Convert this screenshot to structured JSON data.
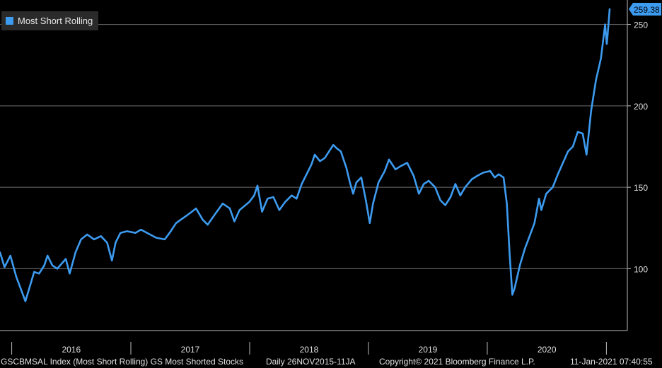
{
  "chart_data": {
    "type": "line",
    "legend": "Most Short Rolling",
    "legend_placement": "top-left",
    "grid": true,
    "ylim": [
      62,
      265
    ],
    "y_ticks": [
      100,
      150,
      200,
      250
    ],
    "y_tick_labels": [
      "100",
      "150",
      "200",
      "250"
    ],
    "last_value_label": "259.38",
    "x_labels": [
      "2016",
      "2017",
      "2018",
      "2019",
      "2020"
    ],
    "xlim": [
      "2015-11-26",
      "2021-01-11"
    ],
    "series": [
      {
        "name": "Most Short Rolling",
        "color": "#3d9bf0",
        "points": [
          [
            "2015-11-26",
            110
          ],
          [
            "2015-12-10",
            101
          ],
          [
            "2015-12-28",
            108
          ],
          [
            "2016-01-15",
            95
          ],
          [
            "2016-02-01",
            86
          ],
          [
            "2016-02-12",
            80
          ],
          [
            "2016-02-24",
            88
          ],
          [
            "2016-03-10",
            98
          ],
          [
            "2016-03-25",
            97
          ],
          [
            "2016-04-10",
            102
          ],
          [
            "2016-04-20",
            108
          ],
          [
            "2016-05-05",
            102
          ],
          [
            "2016-05-20",
            100
          ],
          [
            "2016-06-15",
            106
          ],
          [
            "2016-06-27",
            97
          ],
          [
            "2016-07-15",
            110
          ],
          [
            "2016-08-01",
            118
          ],
          [
            "2016-08-20",
            121
          ],
          [
            "2016-09-10",
            118
          ],
          [
            "2016-10-01",
            120
          ],
          [
            "2016-10-20",
            116
          ],
          [
            "2016-11-04",
            105
          ],
          [
            "2016-11-15",
            116
          ],
          [
            "2016-11-30",
            122
          ],
          [
            "2016-12-20",
            123
          ],
          [
            "2017-01-15",
            122
          ],
          [
            "2017-02-01",
            124
          ],
          [
            "2017-03-01",
            121
          ],
          [
            "2017-03-20",
            119
          ],
          [
            "2017-04-15",
            118
          ],
          [
            "2017-04-30",
            122
          ],
          [
            "2017-05-20",
            128
          ],
          [
            "2017-06-10",
            131
          ],
          [
            "2017-07-01",
            134
          ],
          [
            "2017-07-20",
            137
          ],
          [
            "2017-08-10",
            130
          ],
          [
            "2017-08-25",
            127
          ],
          [
            "2017-09-15",
            133
          ],
          [
            "2017-10-10",
            140
          ],
          [
            "2017-11-01",
            137
          ],
          [
            "2017-11-15",
            129
          ],
          [
            "2017-12-01",
            136
          ],
          [
            "2017-12-31",
            141
          ],
          [
            "2018-01-15",
            145
          ],
          [
            "2018-01-25",
            151
          ],
          [
            "2018-02-08",
            135
          ],
          [
            "2018-02-25",
            143
          ],
          [
            "2018-03-15",
            144
          ],
          [
            "2018-04-02",
            136
          ],
          [
            "2018-04-20",
            141
          ],
          [
            "2018-05-10",
            145
          ],
          [
            "2018-05-25",
            143
          ],
          [
            "2018-06-10",
            152
          ],
          [
            "2018-06-25",
            158
          ],
          [
            "2018-07-10",
            164
          ],
          [
            "2018-07-20",
            170
          ],
          [
            "2018-08-05",
            166
          ],
          [
            "2018-08-20",
            168
          ],
          [
            "2018-09-05",
            173
          ],
          [
            "2018-09-15",
            176
          ],
          [
            "2018-09-25",
            174
          ],
          [
            "2018-10-08",
            172
          ],
          [
            "2018-10-25",
            162
          ],
          [
            "2018-11-05",
            153
          ],
          [
            "2018-11-15",
            146
          ],
          [
            "2018-11-25",
            153
          ],
          [
            "2018-12-10",
            156
          ],
          [
            "2018-12-24",
            142
          ],
          [
            "2019-01-05",
            128
          ],
          [
            "2019-01-15",
            140
          ],
          [
            "2019-02-01",
            153
          ],
          [
            "2019-02-20",
            160
          ],
          [
            "2019-03-05",
            167
          ],
          [
            "2019-03-25",
            161
          ],
          [
            "2019-04-10",
            163
          ],
          [
            "2019-04-30",
            165
          ],
          [
            "2019-05-20",
            157
          ],
          [
            "2019-06-05",
            146
          ],
          [
            "2019-06-20",
            152
          ],
          [
            "2019-07-05",
            154
          ],
          [
            "2019-07-25",
            150
          ],
          [
            "2019-08-10",
            142
          ],
          [
            "2019-08-25",
            139
          ],
          [
            "2019-09-10",
            144
          ],
          [
            "2019-09-25",
            152
          ],
          [
            "2019-10-10",
            145
          ],
          [
            "2019-10-25",
            150
          ],
          [
            "2019-11-15",
            155
          ],
          [
            "2019-12-01",
            157
          ],
          [
            "2019-12-20",
            159
          ],
          [
            "2020-01-10",
            160
          ],
          [
            "2020-01-24",
            156
          ],
          [
            "2020-02-05",
            158
          ],
          [
            "2020-02-20",
            156
          ],
          [
            "2020-03-01",
            140
          ],
          [
            "2020-03-10",
            108
          ],
          [
            "2020-03-18",
            84
          ],
          [
            "2020-03-25",
            88
          ],
          [
            "2020-04-10",
            102
          ],
          [
            "2020-04-25",
            112
          ],
          [
            "2020-05-10",
            120
          ],
          [
            "2020-05-25",
            128
          ],
          [
            "2020-06-08",
            143
          ],
          [
            "2020-06-15",
            136
          ],
          [
            "2020-06-30",
            146
          ],
          [
            "2020-07-20",
            150
          ],
          [
            "2020-08-05",
            158
          ],
          [
            "2020-08-25",
            167
          ],
          [
            "2020-09-05",
            172
          ],
          [
            "2020-09-20",
            175
          ],
          [
            "2020-10-05",
            184
          ],
          [
            "2020-10-20",
            183
          ],
          [
            "2020-11-01",
            170
          ],
          [
            "2020-11-15",
            197
          ],
          [
            "2020-11-30",
            216
          ],
          [
            "2020-12-15",
            229
          ],
          [
            "2020-12-28",
            250
          ],
          [
            "2021-01-02",
            238
          ],
          [
            "2021-01-05",
            244
          ],
          [
            "2021-01-11",
            259.38
          ]
        ]
      }
    ]
  },
  "footer": {
    "ticker": "GSCBMSAL Index (Most Short Rolling) GS Most Shorted Stocks",
    "range": "Daily 26NOV2015-11JA",
    "copyright": "Copyright© 2021 Bloomberg Finance L.P.",
    "timestamp": "11-Jan-2021 07:40:55"
  }
}
